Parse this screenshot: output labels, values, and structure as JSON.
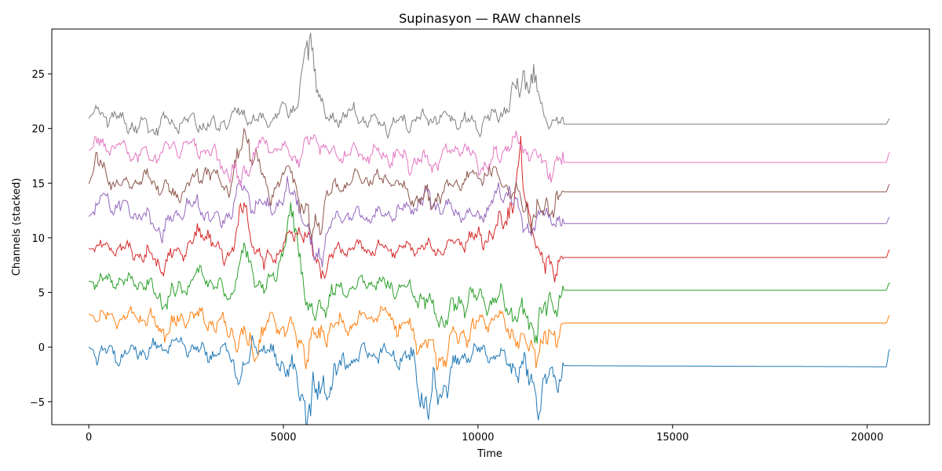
{
  "chart_data": {
    "type": "line",
    "title": "Supinasyon — RAW channels",
    "xlabel": "Time",
    "ylabel": "Channels (stacked)",
    "xlim": [
      -950,
      21600
    ],
    "ylim": [
      -7.1,
      29.1
    ],
    "x_ticks": [
      0,
      5000,
      10000,
      15000,
      20000
    ],
    "y_ticks": [
      -5,
      0,
      5,
      10,
      15,
      20,
      25
    ],
    "grid": false,
    "legend": "none",
    "signal_end": 12200,
    "x_end": 20600,
    "series": [
      {
        "color": "#1f77b4",
        "offset": 0,
        "baseline": -1.75,
        "keypoints": [
          [
            0,
            0.0
          ],
          [
            200,
            -0.5
          ],
          [
            800,
            -0.6
          ],
          [
            1600,
            -0.3
          ],
          [
            2300,
            0.4
          ],
          [
            3000,
            -0.5
          ],
          [
            3600,
            -0.4
          ],
          [
            4000,
            -3.8
          ],
          [
            4200,
            0.5
          ],
          [
            5000,
            -1.5
          ],
          [
            5700,
            -5.2
          ],
          [
            6200,
            -3.2
          ],
          [
            6800,
            -0.8
          ],
          [
            7500,
            -0.5
          ],
          [
            8300,
            -1.2
          ],
          [
            8700,
            -5.4
          ],
          [
            9100,
            -3.4
          ],
          [
            9700,
            -0.4
          ],
          [
            10400,
            -0.6
          ],
          [
            11100,
            -2.0
          ],
          [
            11600,
            -4.5
          ],
          [
            12200,
            -1.7
          ],
          [
            20500,
            -1.8
          ],
          [
            20560,
            -0.2
          ]
        ]
      },
      {
        "color": "#ff7f0e",
        "offset": 3,
        "baseline": 2.2,
        "keypoints": [
          [
            0,
            3.0
          ],
          [
            400,
            2.7
          ],
          [
            1400,
            2.8
          ],
          [
            2000,
            1.6
          ],
          [
            2600,
            3.0
          ],
          [
            3500,
            1.9
          ],
          [
            4200,
            -0.1
          ],
          [
            4700,
            2.5
          ],
          [
            5200,
            1.5
          ],
          [
            5600,
            -0.1
          ],
          [
            6200,
            1.8
          ],
          [
            6800,
            2.3
          ],
          [
            7600,
            3.1
          ],
          [
            8600,
            0.5
          ],
          [
            9000,
            -0.8
          ],
          [
            9600,
            1.2
          ],
          [
            10500,
            2.7
          ],
          [
            11200,
            0.2
          ],
          [
            11600,
            -0.2
          ],
          [
            12200,
            2.2
          ],
          [
            20500,
            2.2
          ],
          [
            20560,
            2.9
          ]
        ]
      },
      {
        "color": "#2ca02c",
        "offset": 6,
        "baseline": 5.2,
        "keypoints": [
          [
            0,
            6.0
          ],
          [
            600,
            6.1
          ],
          [
            1400,
            5.8
          ],
          [
            2000,
            4.3
          ],
          [
            2900,
            6.7
          ],
          [
            3600,
            4.5
          ],
          [
            4000,
            8.6
          ],
          [
            4500,
            4.9
          ],
          [
            5300,
            11.3
          ],
          [
            5700,
            2.0
          ],
          [
            6200,
            4.8
          ],
          [
            7100,
            6.0
          ],
          [
            8300,
            5.2
          ],
          [
            9100,
            2.7
          ],
          [
            9800,
            4.7
          ],
          [
            10800,
            3.8
          ],
          [
            11300,
            2.0
          ],
          [
            11700,
            2.8
          ],
          [
            12200,
            5.2
          ],
          [
            20500,
            5.2
          ],
          [
            20560,
            5.9
          ]
        ]
      },
      {
        "color": "#d62728",
        "offset": 9,
        "baseline": 8.2,
        "keypoints": [
          [
            0,
            9.0
          ],
          [
            200,
            9.1
          ],
          [
            800,
            9.1
          ],
          [
            1400,
            8.4
          ],
          [
            1900,
            7.6
          ],
          [
            2500,
            9.0
          ],
          [
            3000,
            10.8
          ],
          [
            3500,
            7.9
          ],
          [
            4000,
            12.3
          ],
          [
            4500,
            7.3
          ],
          [
            5500,
            11.4
          ],
          [
            5900,
            7.0
          ],
          [
            6400,
            8.9
          ],
          [
            7000,
            9.0
          ],
          [
            8000,
            9.0
          ],
          [
            9000,
            9.1
          ],
          [
            10500,
            10.4
          ],
          [
            11100,
            15.9
          ],
          [
            11700,
            6.8
          ],
          [
            12200,
            8.2
          ],
          [
            20500,
            8.2
          ],
          [
            20560,
            8.9
          ]
        ]
      },
      {
        "color": "#9467bd",
        "offset": 12,
        "baseline": 11.3,
        "keypoints": [
          [
            0,
            12.0
          ],
          [
            400,
            13.4
          ],
          [
            1300,
            12.1
          ],
          [
            1900,
            10.7
          ],
          [
            2600,
            13.3
          ],
          [
            3400,
            11.3
          ],
          [
            3900,
            14.2
          ],
          [
            4500,
            12.5
          ],
          [
            5300,
            14.3
          ],
          [
            5800,
            8.0
          ],
          [
            6400,
            12.0
          ],
          [
            7200,
            12.0
          ],
          [
            8000,
            12.4
          ],
          [
            8700,
            13.6
          ],
          [
            9300,
            12.5
          ],
          [
            10000,
            11.9
          ],
          [
            10800,
            14.7
          ],
          [
            11200,
            10.6
          ],
          [
            11700,
            12.2
          ],
          [
            12200,
            11.3
          ],
          [
            20500,
            11.3
          ],
          [
            20560,
            11.9
          ]
        ]
      },
      {
        "color": "#8c564b",
        "offset": 15,
        "baseline": 14.2,
        "keypoints": [
          [
            0,
            15.0
          ],
          [
            200,
            16.8
          ],
          [
            700,
            14.8
          ],
          [
            1500,
            15.4
          ],
          [
            2200,
            13.8
          ],
          [
            3000,
            16.2
          ],
          [
            3600,
            14.5
          ],
          [
            4100,
            19.8
          ],
          [
            4600,
            13.8
          ],
          [
            5200,
            16.3
          ],
          [
            5700,
            10.4
          ],
          [
            6300,
            14.5
          ],
          [
            7000,
            15.5
          ],
          [
            7800,
            15.3
          ],
          [
            8600,
            13.2
          ],
          [
            9400,
            14.9
          ],
          [
            10300,
            16.1
          ],
          [
            11000,
            13.8
          ],
          [
            11500,
            11.8
          ],
          [
            12200,
            14.2
          ],
          [
            20500,
            14.2
          ],
          [
            20560,
            14.9
          ]
        ]
      },
      {
        "color": "#e377c2",
        "offset": 18,
        "baseline": 16.9,
        "keypoints": [
          [
            0,
            18.0
          ],
          [
            200,
            18.5
          ],
          [
            800,
            18.3
          ],
          [
            1500,
            17.2
          ],
          [
            2200,
            18.4
          ],
          [
            3000,
            18.1
          ],
          [
            3400,
            16.9
          ],
          [
            3900,
            14.9
          ],
          [
            4400,
            18.6
          ],
          [
            5400,
            17.4
          ],
          [
            5800,
            19.6
          ],
          [
            6200,
            17.5
          ],
          [
            6800,
            17.7
          ],
          [
            7500,
            17.6
          ],
          [
            8300,
            16.9
          ],
          [
            8900,
            16.8
          ],
          [
            9500,
            18.5
          ],
          [
            10200,
            16.4
          ],
          [
            10900,
            18.8
          ],
          [
            11400,
            17.6
          ],
          [
            11800,
            16.5
          ],
          [
            12200,
            16.9
          ],
          [
            20500,
            16.9
          ],
          [
            20560,
            17.8
          ]
        ]
      },
      {
        "color": "#7f7f7f",
        "offset": 21,
        "baseline": 20.4,
        "keypoints": [
          [
            0,
            21.0
          ],
          [
            200,
            21.5
          ],
          [
            700,
            21.0
          ],
          [
            1300,
            20.1
          ],
          [
            2000,
            20.4
          ],
          [
            2700,
            20.9
          ],
          [
            3200,
            20.0
          ],
          [
            3900,
            21.6
          ],
          [
            4300,
            20.6
          ],
          [
            5300,
            21.9
          ],
          [
            5700,
            27.6
          ],
          [
            6100,
            20.5
          ],
          [
            6700,
            21.5
          ],
          [
            7500,
            20.2
          ],
          [
            8300,
            20.7
          ],
          [
            9200,
            21.1
          ],
          [
            10000,
            20.2
          ],
          [
            10800,
            22.2
          ],
          [
            11300,
            25.5
          ],
          [
            11700,
            21.0
          ],
          [
            12200,
            20.4
          ],
          [
            20500,
            20.4
          ],
          [
            20560,
            20.9
          ]
        ]
      }
    ]
  }
}
